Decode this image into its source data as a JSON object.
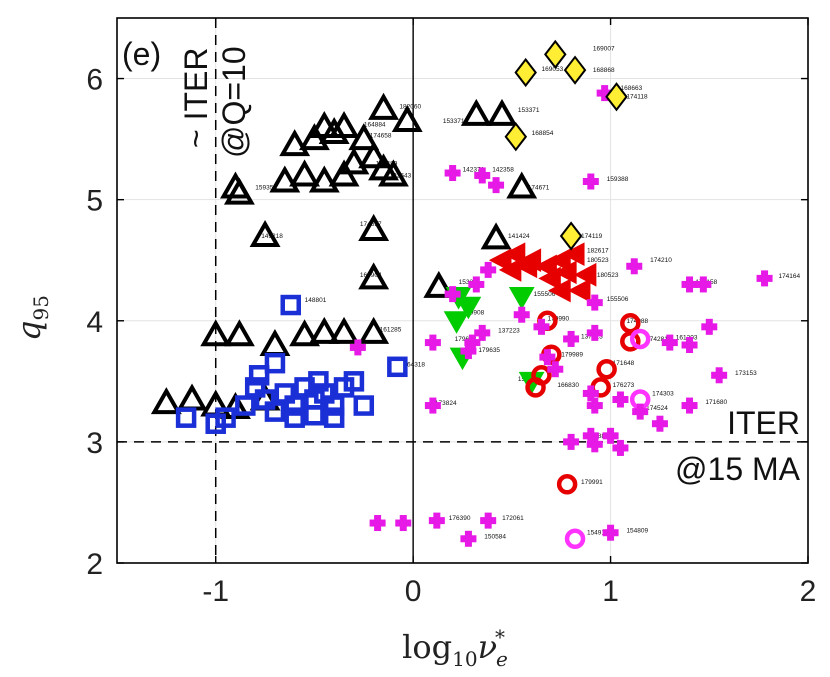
{
  "chart_data": {
    "type": "scatter",
    "panel_label": "(e)",
    "xlabel_base": "log",
    "xlabel_sub": "10",
    "xlabel_var": "ν",
    "xlabel_sub2": "e",
    "xlabel_sup": "*",
    "ylabel_var": "q",
    "ylabel_sub": "95",
    "xlim": [
      -1.5,
      2
    ],
    "ylim": [
      2,
      6.5
    ],
    "xticks": [
      -1,
      0,
      1,
      2
    ],
    "xtick_labels": [
      "-1",
      "0",
      "1",
      "2"
    ],
    "yticks": [
      2,
      3,
      4,
      5,
      6
    ],
    "ytick_labels": [
      "2",
      "3",
      "4",
      "5",
      "6"
    ],
    "grid": true,
    "reference_lines": {
      "vertical": {
        "x": -1,
        "label": "~ ITER @Q=10",
        "label_line1": "~ ITER",
        "label_line2": "@Q=10"
      },
      "horizontal": {
        "y": 3,
        "label": "ITER @15 MA",
        "label_line1": "ITER",
        "label_line2": "@15 MA"
      },
      "zero_line_x": 0
    },
    "series": [
      {
        "marker": "triangle-up",
        "color": "#000000",
        "fill": "none",
        "points": [
          {
            "x": -1.25,
            "y": 3.32
          },
          {
            "x": -1.12,
            "y": 3.35
          },
          {
            "x": -1.0,
            "y": 3.3
          },
          {
            "x": -0.9,
            "y": 3.28
          },
          {
            "x": -0.75,
            "y": 3.35
          },
          {
            "x": -1.0,
            "y": 3.88
          },
          {
            "x": -0.88,
            "y": 3.88
          },
          {
            "x": -0.7,
            "y": 3.8
          },
          {
            "x": -0.55,
            "y": 3.88
          },
          {
            "x": -0.45,
            "y": 3.9
          },
          {
            "x": -0.35,
            "y": 3.9
          },
          {
            "x": -0.2,
            "y": 3.9
          },
          {
            "x": -0.2,
            "y": 4.35
          },
          {
            "x": -0.88,
            "y": 5.05
          },
          {
            "x": -0.9,
            "y": 5.1
          },
          {
            "x": -0.75,
            "y": 4.7
          },
          {
            "x": -0.2,
            "y": 4.75
          },
          {
            "x": -0.65,
            "y": 5.15
          },
          {
            "x": -0.55,
            "y": 5.2
          },
          {
            "x": -0.45,
            "y": 5.15
          },
          {
            "x": -0.35,
            "y": 5.2
          },
          {
            "x": -0.3,
            "y": 5.3
          },
          {
            "x": -0.2,
            "y": 5.35
          },
          {
            "x": -0.15,
            "y": 5.25
          },
          {
            "x": -0.1,
            "y": 5.2
          },
          {
            "x": -0.6,
            "y": 5.45
          },
          {
            "x": -0.5,
            "y": 5.5
          },
          {
            "x": -0.4,
            "y": 5.55
          },
          {
            "x": -0.35,
            "y": 5.6
          },
          {
            "x": -0.25,
            "y": 5.5
          },
          {
            "x": -0.45,
            "y": 5.6
          },
          {
            "x": -0.15,
            "y": 5.75
          },
          {
            "x": -0.03,
            "y": 5.65
          },
          {
            "x": 0.32,
            "y": 5.7
          },
          {
            "x": 0.45,
            "y": 5.7
          },
          {
            "x": 0.55,
            "y": 5.1
          },
          {
            "x": 0.42,
            "y": 4.68
          },
          {
            "x": 0.13,
            "y": 4.28
          }
        ]
      },
      {
        "marker": "square",
        "color": "#1a2fd6",
        "fill": "none",
        "points": [
          {
            "x": -1.15,
            "y": 3.2
          },
          {
            "x": -1.0,
            "y": 3.15
          },
          {
            "x": -0.95,
            "y": 3.2
          },
          {
            "x": -0.85,
            "y": 3.3
          },
          {
            "x": -0.8,
            "y": 3.45
          },
          {
            "x": -0.78,
            "y": 3.55
          },
          {
            "x": -0.7,
            "y": 3.65
          },
          {
            "x": -0.65,
            "y": 3.4
          },
          {
            "x": -0.6,
            "y": 3.3
          },
          {
            "x": -0.55,
            "y": 3.45
          },
          {
            "x": -0.5,
            "y": 3.35
          },
          {
            "x": -0.45,
            "y": 3.4
          },
          {
            "x": -0.4,
            "y": 3.3
          },
          {
            "x": -0.35,
            "y": 3.45
          },
          {
            "x": -0.3,
            "y": 3.5
          },
          {
            "x": -0.25,
            "y": 3.3
          },
          {
            "x": -0.7,
            "y": 3.25
          },
          {
            "x": -0.6,
            "y": 3.2
          },
          {
            "x": -0.5,
            "y": 3.22
          },
          {
            "x": -0.4,
            "y": 3.2
          },
          {
            "x": -0.75,
            "y": 3.35
          },
          {
            "x": -0.62,
            "y": 4.13
          },
          {
            "x": -0.08,
            "y": 3.62
          },
          {
            "x": -0.48,
            "y": 3.5
          }
        ]
      },
      {
        "marker": "triangle-down",
        "color": "#00cc00",
        "fill": "#00cc00",
        "points": [
          {
            "x": 0.23,
            "y": 4.2
          },
          {
            "x": 0.28,
            "y": 4.12
          },
          {
            "x": 0.22,
            "y": 4.0
          },
          {
            "x": 0.55,
            "y": 4.2
          },
          {
            "x": 0.25,
            "y": 3.7
          },
          {
            "x": 0.6,
            "y": 3.5
          }
        ]
      },
      {
        "marker": "triangle-left",
        "color": "#e60000",
        "fill": "#e60000",
        "points": [
          {
            "x": 0.45,
            "y": 4.5
          },
          {
            "x": 0.52,
            "y": 4.55
          },
          {
            "x": 0.6,
            "y": 4.5
          },
          {
            "x": 0.68,
            "y": 4.45
          },
          {
            "x": 0.75,
            "y": 4.5
          },
          {
            "x": 0.82,
            "y": 4.55
          },
          {
            "x": 0.5,
            "y": 4.42
          },
          {
            "x": 0.58,
            "y": 4.45
          },
          {
            "x": 0.7,
            "y": 4.35
          },
          {
            "x": 0.78,
            "y": 4.4
          },
          {
            "x": 0.88,
            "y": 4.38
          },
          {
            "x": 0.75,
            "y": 4.25
          },
          {
            "x": 0.85,
            "y": 4.25
          }
        ]
      },
      {
        "marker": "circle",
        "color": "#e60000",
        "fill": "none",
        "points": [
          {
            "x": 0.68,
            "y": 4.0
          },
          {
            "x": 0.7,
            "y": 3.72
          },
          {
            "x": 0.65,
            "y": 3.55
          },
          {
            "x": 0.62,
            "y": 3.45
          },
          {
            "x": 0.98,
            "y": 3.6
          },
          {
            "x": 0.95,
            "y": 3.45
          },
          {
            "x": 1.1,
            "y": 3.98
          },
          {
            "x": 1.1,
            "y": 3.83
          },
          {
            "x": 0.78,
            "y": 2.65
          }
        ]
      },
      {
        "marker": "circle",
        "color": "#ff33ff",
        "fill": "none",
        "points": [
          {
            "x": 1.15,
            "y": 3.85
          },
          {
            "x": 1.15,
            "y": 3.35
          },
          {
            "x": 0.82,
            "y": 2.2
          }
        ]
      },
      {
        "marker": "plus",
        "color": "#e619e6",
        "fill": "#e619e6",
        "points": [
          {
            "x": 0.2,
            "y": 5.22
          },
          {
            "x": 0.35,
            "y": 5.2
          },
          {
            "x": 0.42,
            "y": 5.12
          },
          {
            "x": 0.9,
            "y": 5.15
          },
          {
            "x": 0.97,
            "y": 5.88
          },
          {
            "x": 0.38,
            "y": 4.42
          },
          {
            "x": 0.32,
            "y": 4.3
          },
          {
            "x": 0.2,
            "y": 4.22
          },
          {
            "x": 0.55,
            "y": 4.05
          },
          {
            "x": 0.35,
            "y": 3.9
          },
          {
            "x": 0.3,
            "y": 3.82
          },
          {
            "x": 0.28,
            "y": 3.75
          },
          {
            "x": 0.1,
            "y": 3.82
          },
          {
            "x": -0.28,
            "y": 3.78
          },
          {
            "x": 0.65,
            "y": 3.95
          },
          {
            "x": 0.8,
            "y": 3.85
          },
          {
            "x": 0.68,
            "y": 3.7
          },
          {
            "x": 0.72,
            "y": 3.6
          },
          {
            "x": 0.92,
            "y": 3.9
          },
          {
            "x": 0.9,
            "y": 3.4
          },
          {
            "x": 0.92,
            "y": 3.3
          },
          {
            "x": 1.05,
            "y": 3.35
          },
          {
            "x": 1.15,
            "y": 3.25
          },
          {
            "x": 1.25,
            "y": 3.15
          },
          {
            "x": 1.4,
            "y": 3.3
          },
          {
            "x": 1.55,
            "y": 3.55
          },
          {
            "x": 1.3,
            "y": 3.82
          },
          {
            "x": 1.4,
            "y": 3.8
          },
          {
            "x": 1.5,
            "y": 3.95
          },
          {
            "x": 1.12,
            "y": 4.45
          },
          {
            "x": 1.4,
            "y": 4.3
          },
          {
            "x": 1.47,
            "y": 4.3
          },
          {
            "x": 1.78,
            "y": 4.35
          },
          {
            "x": 0.1,
            "y": 3.3
          },
          {
            "x": 0.92,
            "y": 4.15
          },
          {
            "x": 0.8,
            "y": 3.0
          },
          {
            "x": 1.0,
            "y": 3.05
          },
          {
            "x": 0.92,
            "y": 2.98
          },
          {
            "x": 1.05,
            "y": 2.95
          },
          {
            "x": -0.18,
            "y": 2.33
          },
          {
            "x": -0.05,
            "y": 2.33
          },
          {
            "x": 0.12,
            "y": 2.35
          },
          {
            "x": 0.28,
            "y": 2.2
          },
          {
            "x": 0.38,
            "y": 2.35
          },
          {
            "x": 1.0,
            "y": 2.25
          },
          {
            "x": 0.9,
            "y": 3.05
          }
        ]
      },
      {
        "marker": "diamond",
        "color": "#000000",
        "fill": "#ffee33",
        "points": [
          {
            "x": 0.57,
            "y": 6.05
          },
          {
            "x": 0.72,
            "y": 6.2
          },
          {
            "x": 0.82,
            "y": 6.07
          },
          {
            "x": 1.03,
            "y": 5.85
          },
          {
            "x": 0.52,
            "y": 5.52
          },
          {
            "x": 0.8,
            "y": 4.7
          }
        ]
      }
    ],
    "shot_labels": [
      {
        "x": 0.88,
        "y": 6.25,
        "text": "169007"
      },
      {
        "x": 0.88,
        "y": 6.07,
        "text": "168868"
      },
      {
        "x": 0.62,
        "y": 6.08,
        "text": "169053"
      },
      {
        "x": 1.02,
        "y": 5.92,
        "text": "168663"
      },
      {
        "x": 1.05,
        "y": 5.85,
        "text": "174118"
      },
      {
        "x": 0.5,
        "y": 5.74,
        "text": "153371"
      },
      {
        "x": 0.57,
        "y": 5.55,
        "text": "168854"
      },
      {
        "x": 0.12,
        "y": 5.65,
        "text": "153371"
      },
      {
        "x": -0.1,
        "y": 5.77,
        "text": "182060"
      },
      {
        "x": -0.28,
        "y": 5.62,
        "text": "164884"
      },
      {
        "x": -0.25,
        "y": 5.53,
        "text": "174658"
      },
      {
        "x": -0.15,
        "y": 5.2,
        "text": "182643"
      },
      {
        "x": -0.22,
        "y": 5.3,
        "text": "182489"
      },
      {
        "x": 0.22,
        "y": 5.25,
        "text": "142371"
      },
      {
        "x": 0.37,
        "y": 5.25,
        "text": "142358"
      },
      {
        "x": 0.55,
        "y": 5.1,
        "text": "174671"
      },
      {
        "x": 0.95,
        "y": 5.17,
        "text": "159388"
      },
      {
        "x": -0.83,
        "y": 5.1,
        "text": "159353"
      },
      {
        "x": -0.3,
        "y": 4.8,
        "text": "174657"
      },
      {
        "x": -0.8,
        "y": 4.7,
        "text": "149218"
      },
      {
        "x": -0.3,
        "y": 4.38,
        "text": "164904"
      },
      {
        "x": 0.45,
        "y": 4.7,
        "text": "141424"
      },
      {
        "x": 0.82,
        "y": 4.7,
        "text": "174119"
      },
      {
        "x": 0.85,
        "y": 4.58,
        "text": "182617"
      },
      {
        "x": 0.85,
        "y": 4.5,
        "text": "180523"
      },
      {
        "x": 0.9,
        "y": 4.38,
        "text": "180523"
      },
      {
        "x": 1.17,
        "y": 4.5,
        "text": "174210"
      },
      {
        "x": 1.4,
        "y": 4.32,
        "text": "174158"
      },
      {
        "x": 1.82,
        "y": 4.37,
        "text": "174164"
      },
      {
        "x": 0.2,
        "y": 4.32,
        "text": "153355"
      },
      {
        "x": 0.58,
        "y": 4.22,
        "text": "155506"
      },
      {
        "x": 0.95,
        "y": 4.18,
        "text": "155506"
      },
      {
        "x": 0.22,
        "y": 4.07,
        "text": "149908"
      },
      {
        "x": 0.65,
        "y": 4.02,
        "text": "179990"
      },
      {
        "x": 1.05,
        "y": 4.0,
        "text": "174088"
      },
      {
        "x": 1.15,
        "y": 3.85,
        "text": "174281"
      },
      {
        "x": 1.3,
        "y": 3.86,
        "text": "161203"
      },
      {
        "x": 0.4,
        "y": 3.92,
        "text": "137223"
      },
      {
        "x": 0.82,
        "y": 3.87,
        "text": "137223"
      },
      {
        "x": 0.18,
        "y": 3.85,
        "text": "179633"
      },
      {
        "x": 0.3,
        "y": 3.76,
        "text": "179635"
      },
      {
        "x": 0.72,
        "y": 3.72,
        "text": "179989"
      },
      {
        "x": 0.98,
        "y": 3.65,
        "text": "171648"
      },
      {
        "x": 1.6,
        "y": 3.57,
        "text": "173153"
      },
      {
        "x": 0.5,
        "y": 3.52,
        "text": "155529"
      },
      {
        "x": 0.7,
        "y": 3.47,
        "text": "166830"
      },
      {
        "x": 0.98,
        "y": 3.47,
        "text": "176273"
      },
      {
        "x": 1.18,
        "y": 3.4,
        "text": "174303"
      },
      {
        "x": 1.15,
        "y": 3.28,
        "text": "174524"
      },
      {
        "x": 1.45,
        "y": 3.33,
        "text": "171680"
      },
      {
        "x": 0.08,
        "y": 3.32,
        "text": "173824"
      },
      {
        "x": -0.08,
        "y": 3.64,
        "text": "164318"
      },
      {
        "x": -0.58,
        "y": 4.17,
        "text": "148801"
      },
      {
        "x": -0.2,
        "y": 3.93,
        "text": "161285"
      },
      {
        "x": 0.85,
        "y": 3.05,
        "text": "158888"
      },
      {
        "x": 0.82,
        "y": 2.67,
        "text": "179991"
      },
      {
        "x": 1.05,
        "y": 2.27,
        "text": "154809"
      },
      {
        "x": 0.85,
        "y": 2.25,
        "text": "154912"
      },
      {
        "x": 0.15,
        "y": 2.37,
        "text": "176390"
      },
      {
        "x": 0.42,
        "y": 2.37,
        "text": "172061"
      },
      {
        "x": 0.33,
        "y": 2.22,
        "text": "150584"
      }
    ]
  }
}
